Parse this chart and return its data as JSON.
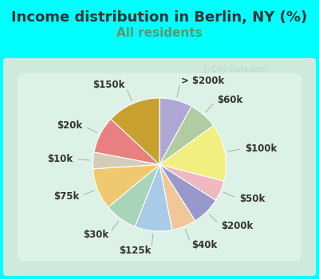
{
  "title": "Income distribution in Berlin, NY (%)",
  "subtitle": "All residents",
  "bg_outer": "#00FFFF",
  "bg_inner_color": "#d8f0e8",
  "slices": [
    {
      "label": "> $200k",
      "value": 8,
      "color": "#b0a8d4"
    },
    {
      "label": "$60k",
      "value": 7,
      "color": "#b0cca0"
    },
    {
      "label": "$100k",
      "value": 14,
      "color": "#f0ef80"
    },
    {
      "label": "$50k",
      "value": 5,
      "color": "#f0b8c0"
    },
    {
      "label": "$200k",
      "value": 7,
      "color": "#9898cc"
    },
    {
      "label": "$40k",
      "value": 6,
      "color": "#f0c898"
    },
    {
      "label": "$125k",
      "value": 9,
      "color": "#a8cce8"
    },
    {
      "label": "$30k",
      "value": 8,
      "color": "#a8d4b8"
    },
    {
      "label": "$75k",
      "value": 10,
      "color": "#f0c870"
    },
    {
      "label": "$10k",
      "value": 4,
      "color": "#d4ccb8"
    },
    {
      "label": "$20k",
      "value": 9,
      "color": "#e88080"
    },
    {
      "label": "$150k",
      "value": 13,
      "color": "#c8a030"
    }
  ],
  "title_fontsize": 13,
  "subtitle_fontsize": 11,
  "label_fontsize": 8.5
}
